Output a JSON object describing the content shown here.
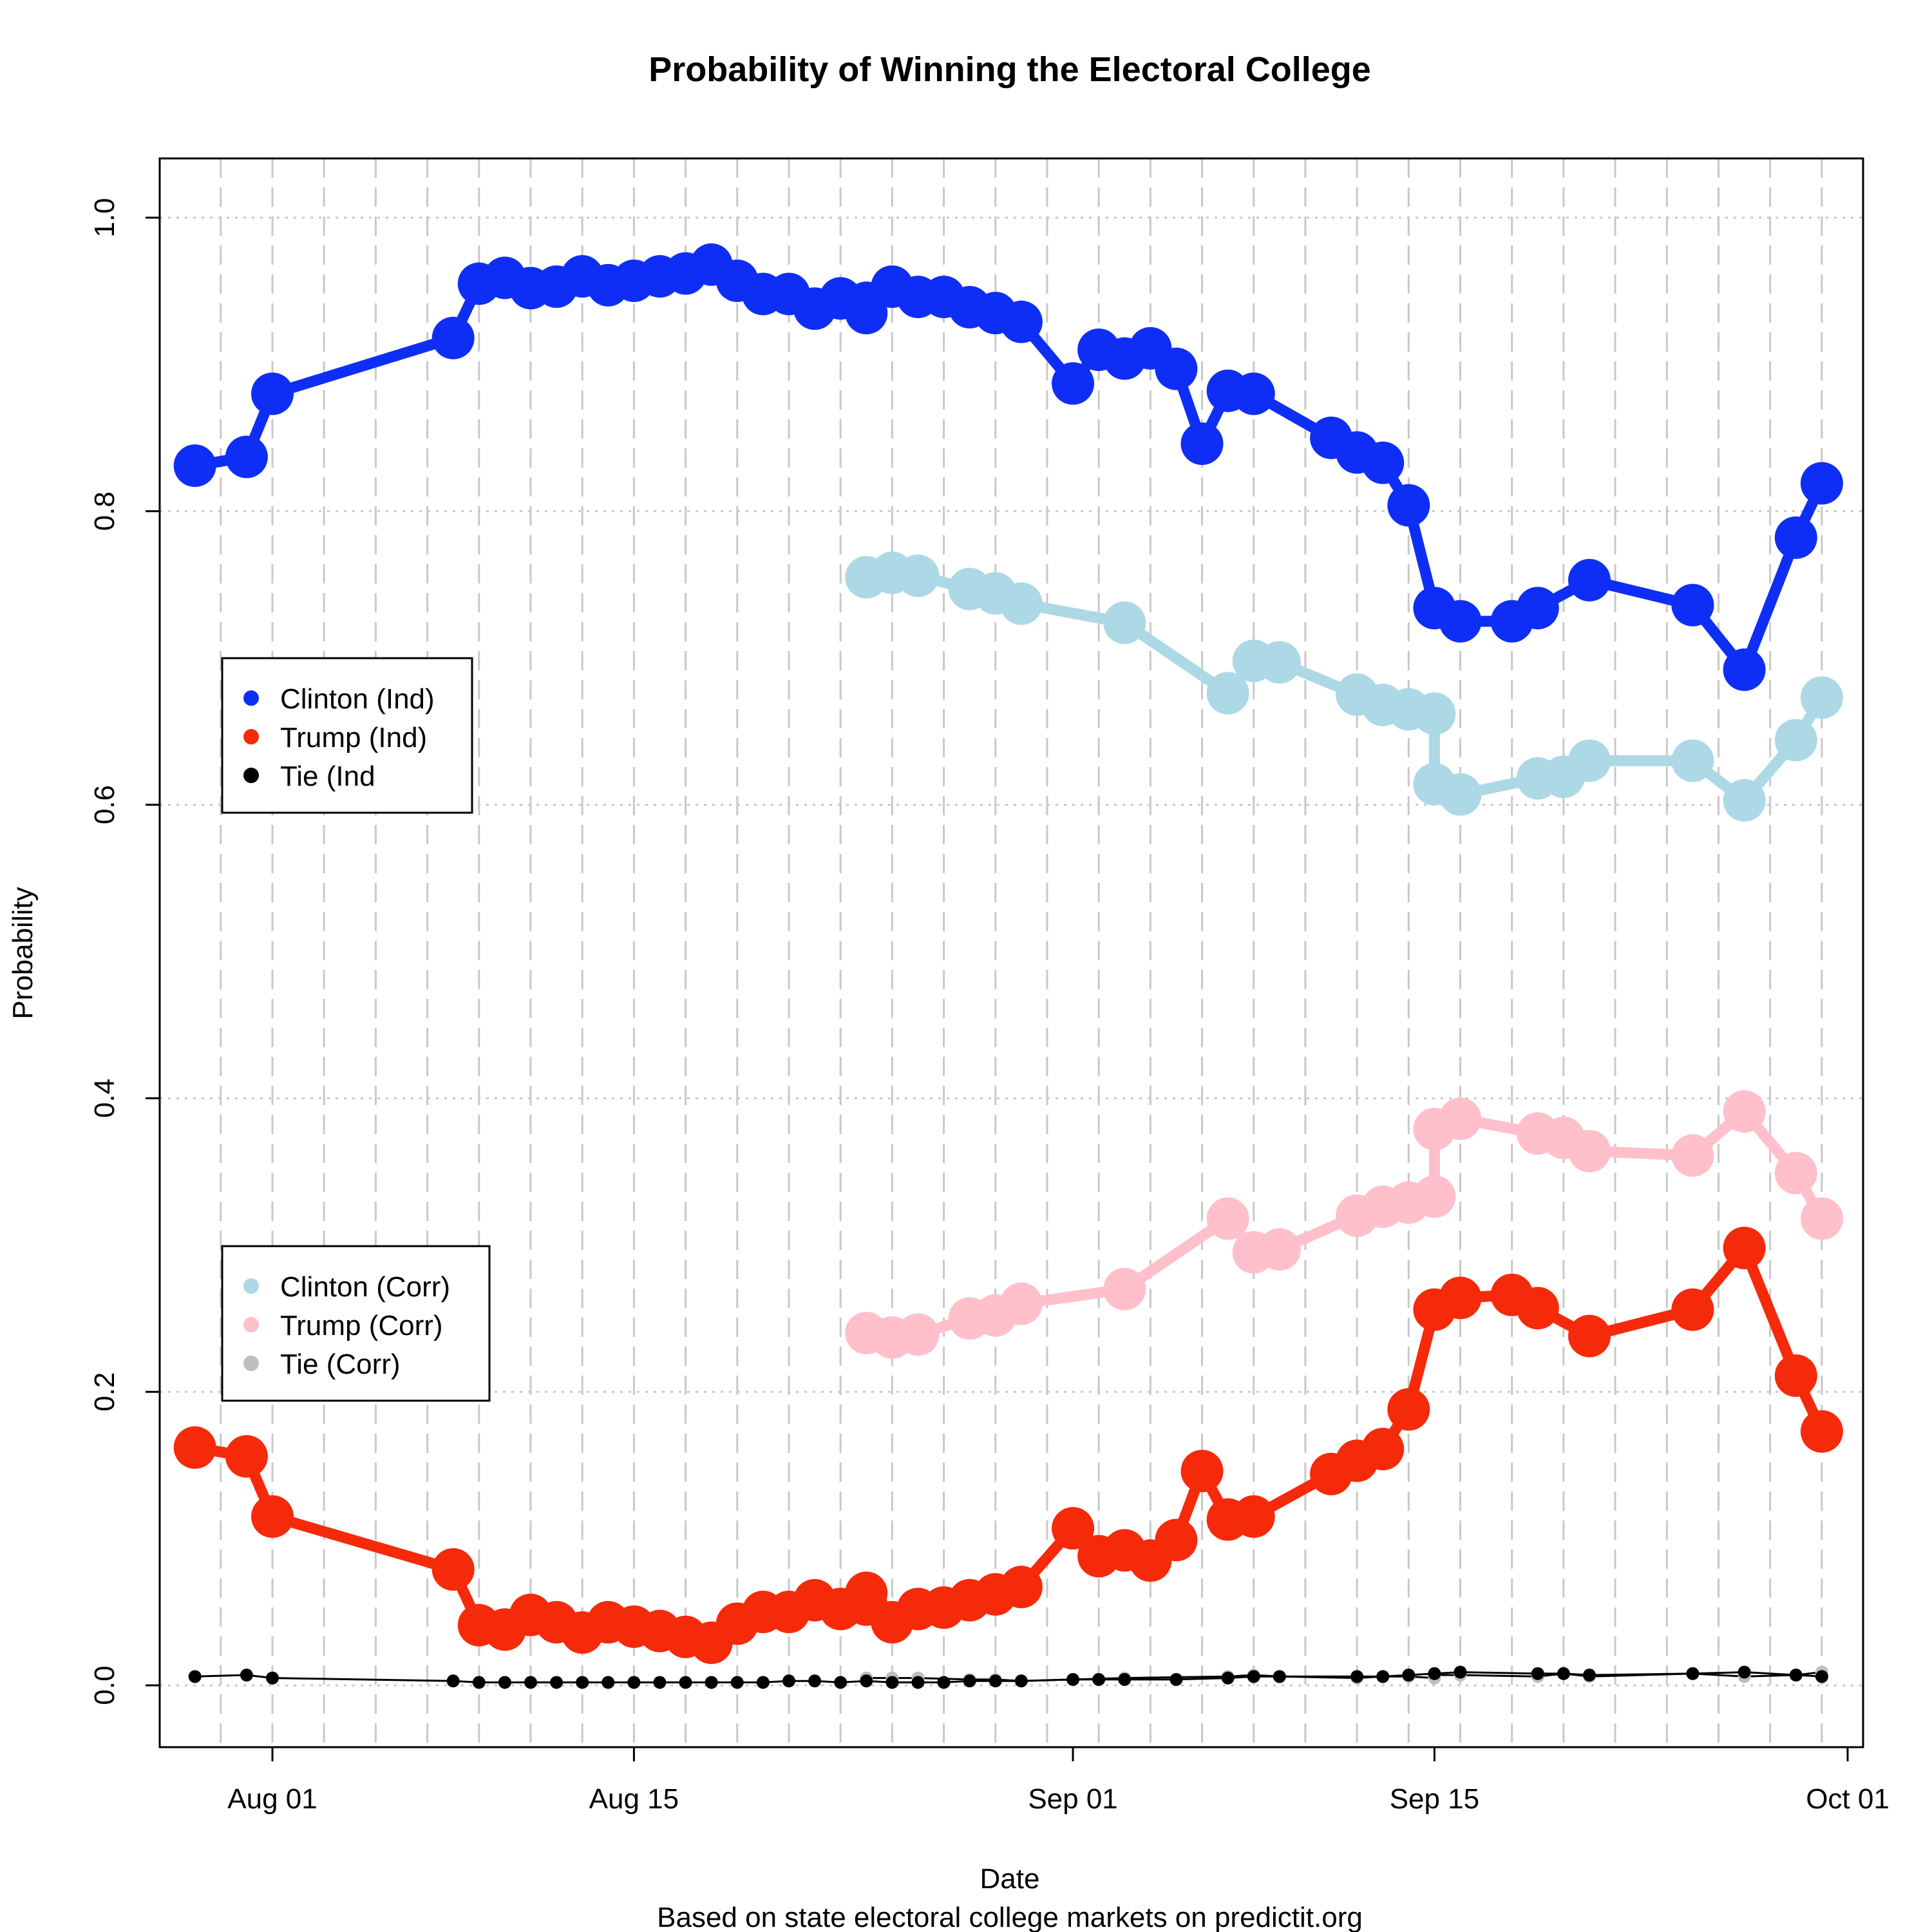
{
  "chart_data": {
    "type": "line",
    "title": "Probability of Winning the Electoral College",
    "xlabel": "Date",
    "subtitle": "Based on state electoral college markets on predictit.org",
    "ylabel": "Probability",
    "x_axis": {
      "kind": "date",
      "min": "2016-07-29",
      "max": "2016-10-01",
      "ticks": [
        {
          "date": "2016-08-01",
          "label": "Aug 01"
        },
        {
          "date": "2016-08-15",
          "label": "Aug 15"
        },
        {
          "date": "2016-09-01",
          "label": "Sep 01"
        },
        {
          "date": "2016-09-15",
          "label": "Sep 15"
        },
        {
          "date": "2016-10-01",
          "label": "Oct 01"
        }
      ]
    },
    "ylim": [
      0,
      1
    ],
    "y_ticks": [
      {
        "value": 0.0,
        "label": "0.0"
      },
      {
        "value": 0.2,
        "label": "0.2"
      },
      {
        "value": 0.4,
        "label": "0.4"
      },
      {
        "value": 0.6,
        "label": "0.6"
      },
      {
        "value": 0.8,
        "label": "0.8"
      },
      {
        "value": 1.0,
        "label": "1.0"
      }
    ],
    "grid": true,
    "legends": [
      {
        "position": "left-middle",
        "entries": [
          {
            "label": "Clinton (Ind)",
            "color": "#0f2ef5"
          },
          {
            "label": "Trump (Ind)",
            "color": "#f52a0b"
          },
          {
            "label": "Tie (Ind",
            "color": "#000000"
          }
        ]
      },
      {
        "position": "left-lower",
        "entries": [
          {
            "label": "Clinton (Corr)",
            "color": "#add8e6"
          },
          {
            "label": "Trump (Corr)",
            "color": "#ffc0cb"
          },
          {
            "label": "Tie (Corr)",
            "color": "#bebebe"
          }
        ]
      }
    ],
    "series": [
      {
        "name": "Clinton (Corr)",
        "color": "#add8e6",
        "style": "thick",
        "points": [
          [
            "2016-08-24",
            0.755
          ],
          [
            "2016-08-25",
            0.758
          ],
          [
            "2016-08-26",
            0.756
          ],
          [
            "2016-08-28",
            0.747
          ],
          [
            "2016-08-29",
            0.744
          ],
          [
            "2016-08-30",
            0.737
          ],
          [
            "2016-09-03",
            0.724
          ],
          [
            "2016-09-07",
            0.676
          ],
          [
            "2016-09-08",
            0.698
          ],
          [
            "2016-09-09",
            0.697
          ],
          [
            "2016-09-12",
            0.675
          ],
          [
            "2016-09-13",
            0.668
          ],
          [
            "2016-09-14",
            0.665
          ],
          [
            "2016-09-15",
            0.662
          ],
          [
            "2016-09-15",
            0.614
          ],
          [
            "2016-09-16",
            0.607
          ],
          [
            "2016-09-19",
            0.618
          ],
          [
            "2016-09-20",
            0.619
          ],
          [
            "2016-09-21",
            0.63
          ],
          [
            "2016-09-25",
            0.63
          ],
          [
            "2016-09-27",
            0.603
          ],
          [
            "2016-09-29",
            0.644
          ],
          [
            "2016-09-30",
            0.673
          ]
        ]
      },
      {
        "name": "Trump (Corr)",
        "color": "#ffc0cb",
        "style": "thick",
        "points": [
          [
            "2016-08-24",
            0.24
          ],
          [
            "2016-08-25",
            0.237
          ],
          [
            "2016-08-26",
            0.239
          ],
          [
            "2016-08-28",
            0.25
          ],
          [
            "2016-08-29",
            0.252
          ],
          [
            "2016-08-30",
            0.26
          ],
          [
            "2016-09-03",
            0.27
          ],
          [
            "2016-09-07",
            0.318
          ],
          [
            "2016-09-08",
            0.295
          ],
          [
            "2016-09-09",
            0.297
          ],
          [
            "2016-09-12",
            0.32
          ],
          [
            "2016-09-13",
            0.326
          ],
          [
            "2016-09-14",
            0.329
          ],
          [
            "2016-09-15",
            0.333
          ],
          [
            "2016-09-15",
            0.379
          ],
          [
            "2016-09-16",
            0.386
          ],
          [
            "2016-09-19",
            0.376
          ],
          [
            "2016-09-20",
            0.373
          ],
          [
            "2016-09-21",
            0.364
          ],
          [
            "2016-09-25",
            0.361
          ],
          [
            "2016-09-27",
            0.391
          ],
          [
            "2016-09-29",
            0.349
          ],
          [
            "2016-09-30",
            0.318
          ]
        ]
      },
      {
        "name": "Clinton (Ind)",
        "color": "#0f2ef5",
        "style": "thick",
        "points": [
          [
            "2016-07-29",
            0.831
          ],
          [
            "2016-07-31",
            0.837
          ],
          [
            "2016-08-01",
            0.88
          ],
          [
            "2016-08-08",
            0.918
          ],
          [
            "2016-08-09",
            0.955
          ],
          [
            "2016-08-10",
            0.959
          ],
          [
            "2016-08-11",
            0.952
          ],
          [
            "2016-08-12",
            0.953
          ],
          [
            "2016-08-13",
            0.96
          ],
          [
            "2016-08-14",
            0.954
          ],
          [
            "2016-08-15",
            0.957
          ],
          [
            "2016-08-16",
            0.96
          ],
          [
            "2016-08-17",
            0.962
          ],
          [
            "2016-08-18",
            0.968
          ],
          [
            "2016-08-19",
            0.957
          ],
          [
            "2016-08-20",
            0.948
          ],
          [
            "2016-08-21",
            0.948
          ],
          [
            "2016-08-22",
            0.938
          ],
          [
            "2016-08-23",
            0.945
          ],
          [
            "2016-08-24",
            0.942
          ],
          [
            "2016-08-24",
            0.935
          ],
          [
            "2016-08-25",
            0.953
          ],
          [
            "2016-08-26",
            0.946
          ],
          [
            "2016-08-27",
            0.946
          ],
          [
            "2016-08-28",
            0.939
          ],
          [
            "2016-08-29",
            0.935
          ],
          [
            "2016-08-30",
            0.929
          ],
          [
            "2016-09-01",
            0.887
          ],
          [
            "2016-09-02",
            0.91
          ],
          [
            "2016-09-03",
            0.904
          ],
          [
            "2016-09-04",
            0.911
          ],
          [
            "2016-09-05",
            0.897
          ],
          [
            "2016-09-06",
            0.846
          ],
          [
            "2016-09-07",
            0.882
          ],
          [
            "2016-09-08",
            0.88
          ],
          [
            "2016-09-11",
            0.85
          ],
          [
            "2016-09-12",
            0.84
          ],
          [
            "2016-09-13",
            0.833
          ],
          [
            "2016-09-14",
            0.804
          ],
          [
            "2016-09-15",
            0.734
          ],
          [
            "2016-09-16",
            0.725
          ],
          [
            "2016-09-18",
            0.725
          ],
          [
            "2016-09-19",
            0.734
          ],
          [
            "2016-09-21",
            0.753
          ],
          [
            "2016-09-25",
            0.736
          ],
          [
            "2016-09-27",
            0.692
          ],
          [
            "2016-09-29",
            0.782
          ],
          [
            "2016-09-30",
            0.819
          ]
        ]
      },
      {
        "name": "Trump (Ind)",
        "color": "#f52a0b",
        "style": "thick",
        "points": [
          [
            "2016-07-29",
            0.162
          ],
          [
            "2016-07-31",
            0.156
          ],
          [
            "2016-08-01",
            0.115
          ],
          [
            "2016-08-08",
            0.079
          ],
          [
            "2016-08-09",
            0.041
          ],
          [
            "2016-08-10",
            0.038
          ],
          [
            "2016-08-11",
            0.048
          ],
          [
            "2016-08-12",
            0.043
          ],
          [
            "2016-08-13",
            0.036
          ],
          [
            "2016-08-14",
            0.043
          ],
          [
            "2016-08-15",
            0.04
          ],
          [
            "2016-08-16",
            0.037
          ],
          [
            "2016-08-17",
            0.033
          ],
          [
            "2016-08-18",
            0.029
          ],
          [
            "2016-08-19",
            0.042
          ],
          [
            "2016-08-20",
            0.05
          ],
          [
            "2016-08-21",
            0.05
          ],
          [
            "2016-08-22",
            0.058
          ],
          [
            "2016-08-23",
            0.052
          ],
          [
            "2016-08-24",
            0.055
          ],
          [
            "2016-08-24",
            0.063
          ],
          [
            "2016-08-25",
            0.043
          ],
          [
            "2016-08-26",
            0.052
          ],
          [
            "2016-08-27",
            0.053
          ],
          [
            "2016-08-28",
            0.058
          ],
          [
            "2016-08-29",
            0.062
          ],
          [
            "2016-08-30",
            0.067
          ],
          [
            "2016-09-01",
            0.107
          ],
          [
            "2016-09-02",
            0.088
          ],
          [
            "2016-09-03",
            0.092
          ],
          [
            "2016-09-04",
            0.085
          ],
          [
            "2016-09-05",
            0.099
          ],
          [
            "2016-09-06",
            0.146
          ],
          [
            "2016-09-07",
            0.113
          ],
          [
            "2016-09-08",
            0.115
          ],
          [
            "2016-09-11",
            0.144
          ],
          [
            "2016-09-12",
            0.153
          ],
          [
            "2016-09-13",
            0.161
          ],
          [
            "2016-09-14",
            0.188
          ],
          [
            "2016-09-15",
            0.256
          ],
          [
            "2016-09-16",
            0.264
          ],
          [
            "2016-09-18",
            0.266
          ],
          [
            "2016-09-19",
            0.257
          ],
          [
            "2016-09-21",
            0.238
          ],
          [
            "2016-09-25",
            0.256
          ],
          [
            "2016-09-27",
            0.298
          ],
          [
            "2016-09-29",
            0.211
          ],
          [
            "2016-09-30",
            0.173
          ]
        ]
      },
      {
        "name": "Tie (Corr)",
        "color": "#bebebe",
        "style": "thin",
        "points": [
          [
            "2016-08-24",
            0.005
          ],
          [
            "2016-08-25",
            0.005
          ],
          [
            "2016-08-26",
            0.005
          ],
          [
            "2016-08-28",
            0.004
          ],
          [
            "2016-08-29",
            0.004
          ],
          [
            "2016-08-30",
            0.003
          ],
          [
            "2016-09-03",
            0.005
          ],
          [
            "2016-09-07",
            0.006
          ],
          [
            "2016-09-08",
            0.007
          ],
          [
            "2016-09-09",
            0.006
          ],
          [
            "2016-09-12",
            0.005
          ],
          [
            "2016-09-13",
            0.006
          ],
          [
            "2016-09-14",
            0.006
          ],
          [
            "2016-09-15",
            0.005
          ],
          [
            "2016-09-15",
            0.007
          ],
          [
            "2016-09-16",
            0.007
          ],
          [
            "2016-09-19",
            0.006
          ],
          [
            "2016-09-20",
            0.008
          ],
          [
            "2016-09-21",
            0.006
          ],
          [
            "2016-09-25",
            0.008
          ],
          [
            "2016-09-27",
            0.006
          ],
          [
            "2016-09-29",
            0.007
          ],
          [
            "2016-09-30",
            0.009
          ]
        ]
      },
      {
        "name": "Tie (Ind",
        "color": "#000000",
        "style": "thin",
        "points": [
          [
            "2016-07-29",
            0.006
          ],
          [
            "2016-07-31",
            0.007
          ],
          [
            "2016-08-01",
            0.005
          ],
          [
            "2016-08-08",
            0.003
          ],
          [
            "2016-08-09",
            0.002
          ],
          [
            "2016-08-10",
            0.002
          ],
          [
            "2016-08-11",
            0.002
          ],
          [
            "2016-08-12",
            0.002
          ],
          [
            "2016-08-13",
            0.002
          ],
          [
            "2016-08-14",
            0.002
          ],
          [
            "2016-08-15",
            0.002
          ],
          [
            "2016-08-16",
            0.002
          ],
          [
            "2016-08-17",
            0.002
          ],
          [
            "2016-08-18",
            0.002
          ],
          [
            "2016-08-19",
            0.002
          ],
          [
            "2016-08-20",
            0.002
          ],
          [
            "2016-08-21",
            0.003
          ],
          [
            "2016-08-22",
            0.003
          ],
          [
            "2016-08-23",
            0.002
          ],
          [
            "2016-08-24",
            0.003
          ],
          [
            "2016-08-25",
            0.002
          ],
          [
            "2016-08-26",
            0.002
          ],
          [
            "2016-08-27",
            0.002
          ],
          [
            "2016-08-28",
            0.003
          ],
          [
            "2016-08-29",
            0.003
          ],
          [
            "2016-08-30",
            0.003
          ],
          [
            "2016-09-01",
            0.004
          ],
          [
            "2016-09-02",
            0.004
          ],
          [
            "2016-09-03",
            0.004
          ],
          [
            "2016-09-05",
            0.004
          ],
          [
            "2016-09-07",
            0.005
          ],
          [
            "2016-09-08",
            0.006
          ],
          [
            "2016-09-09",
            0.006
          ],
          [
            "2016-09-12",
            0.006
          ],
          [
            "2016-09-13",
            0.006
          ],
          [
            "2016-09-14",
            0.007
          ],
          [
            "2016-09-15",
            0.008
          ],
          [
            "2016-09-16",
            0.009
          ],
          [
            "2016-09-19",
            0.008
          ],
          [
            "2016-09-20",
            0.008
          ],
          [
            "2016-09-21",
            0.007
          ],
          [
            "2016-09-25",
            0.008
          ],
          [
            "2016-09-27",
            0.009
          ],
          [
            "2016-09-29",
            0.007
          ],
          [
            "2016-09-30",
            0.006
          ]
        ]
      }
    ]
  }
}
